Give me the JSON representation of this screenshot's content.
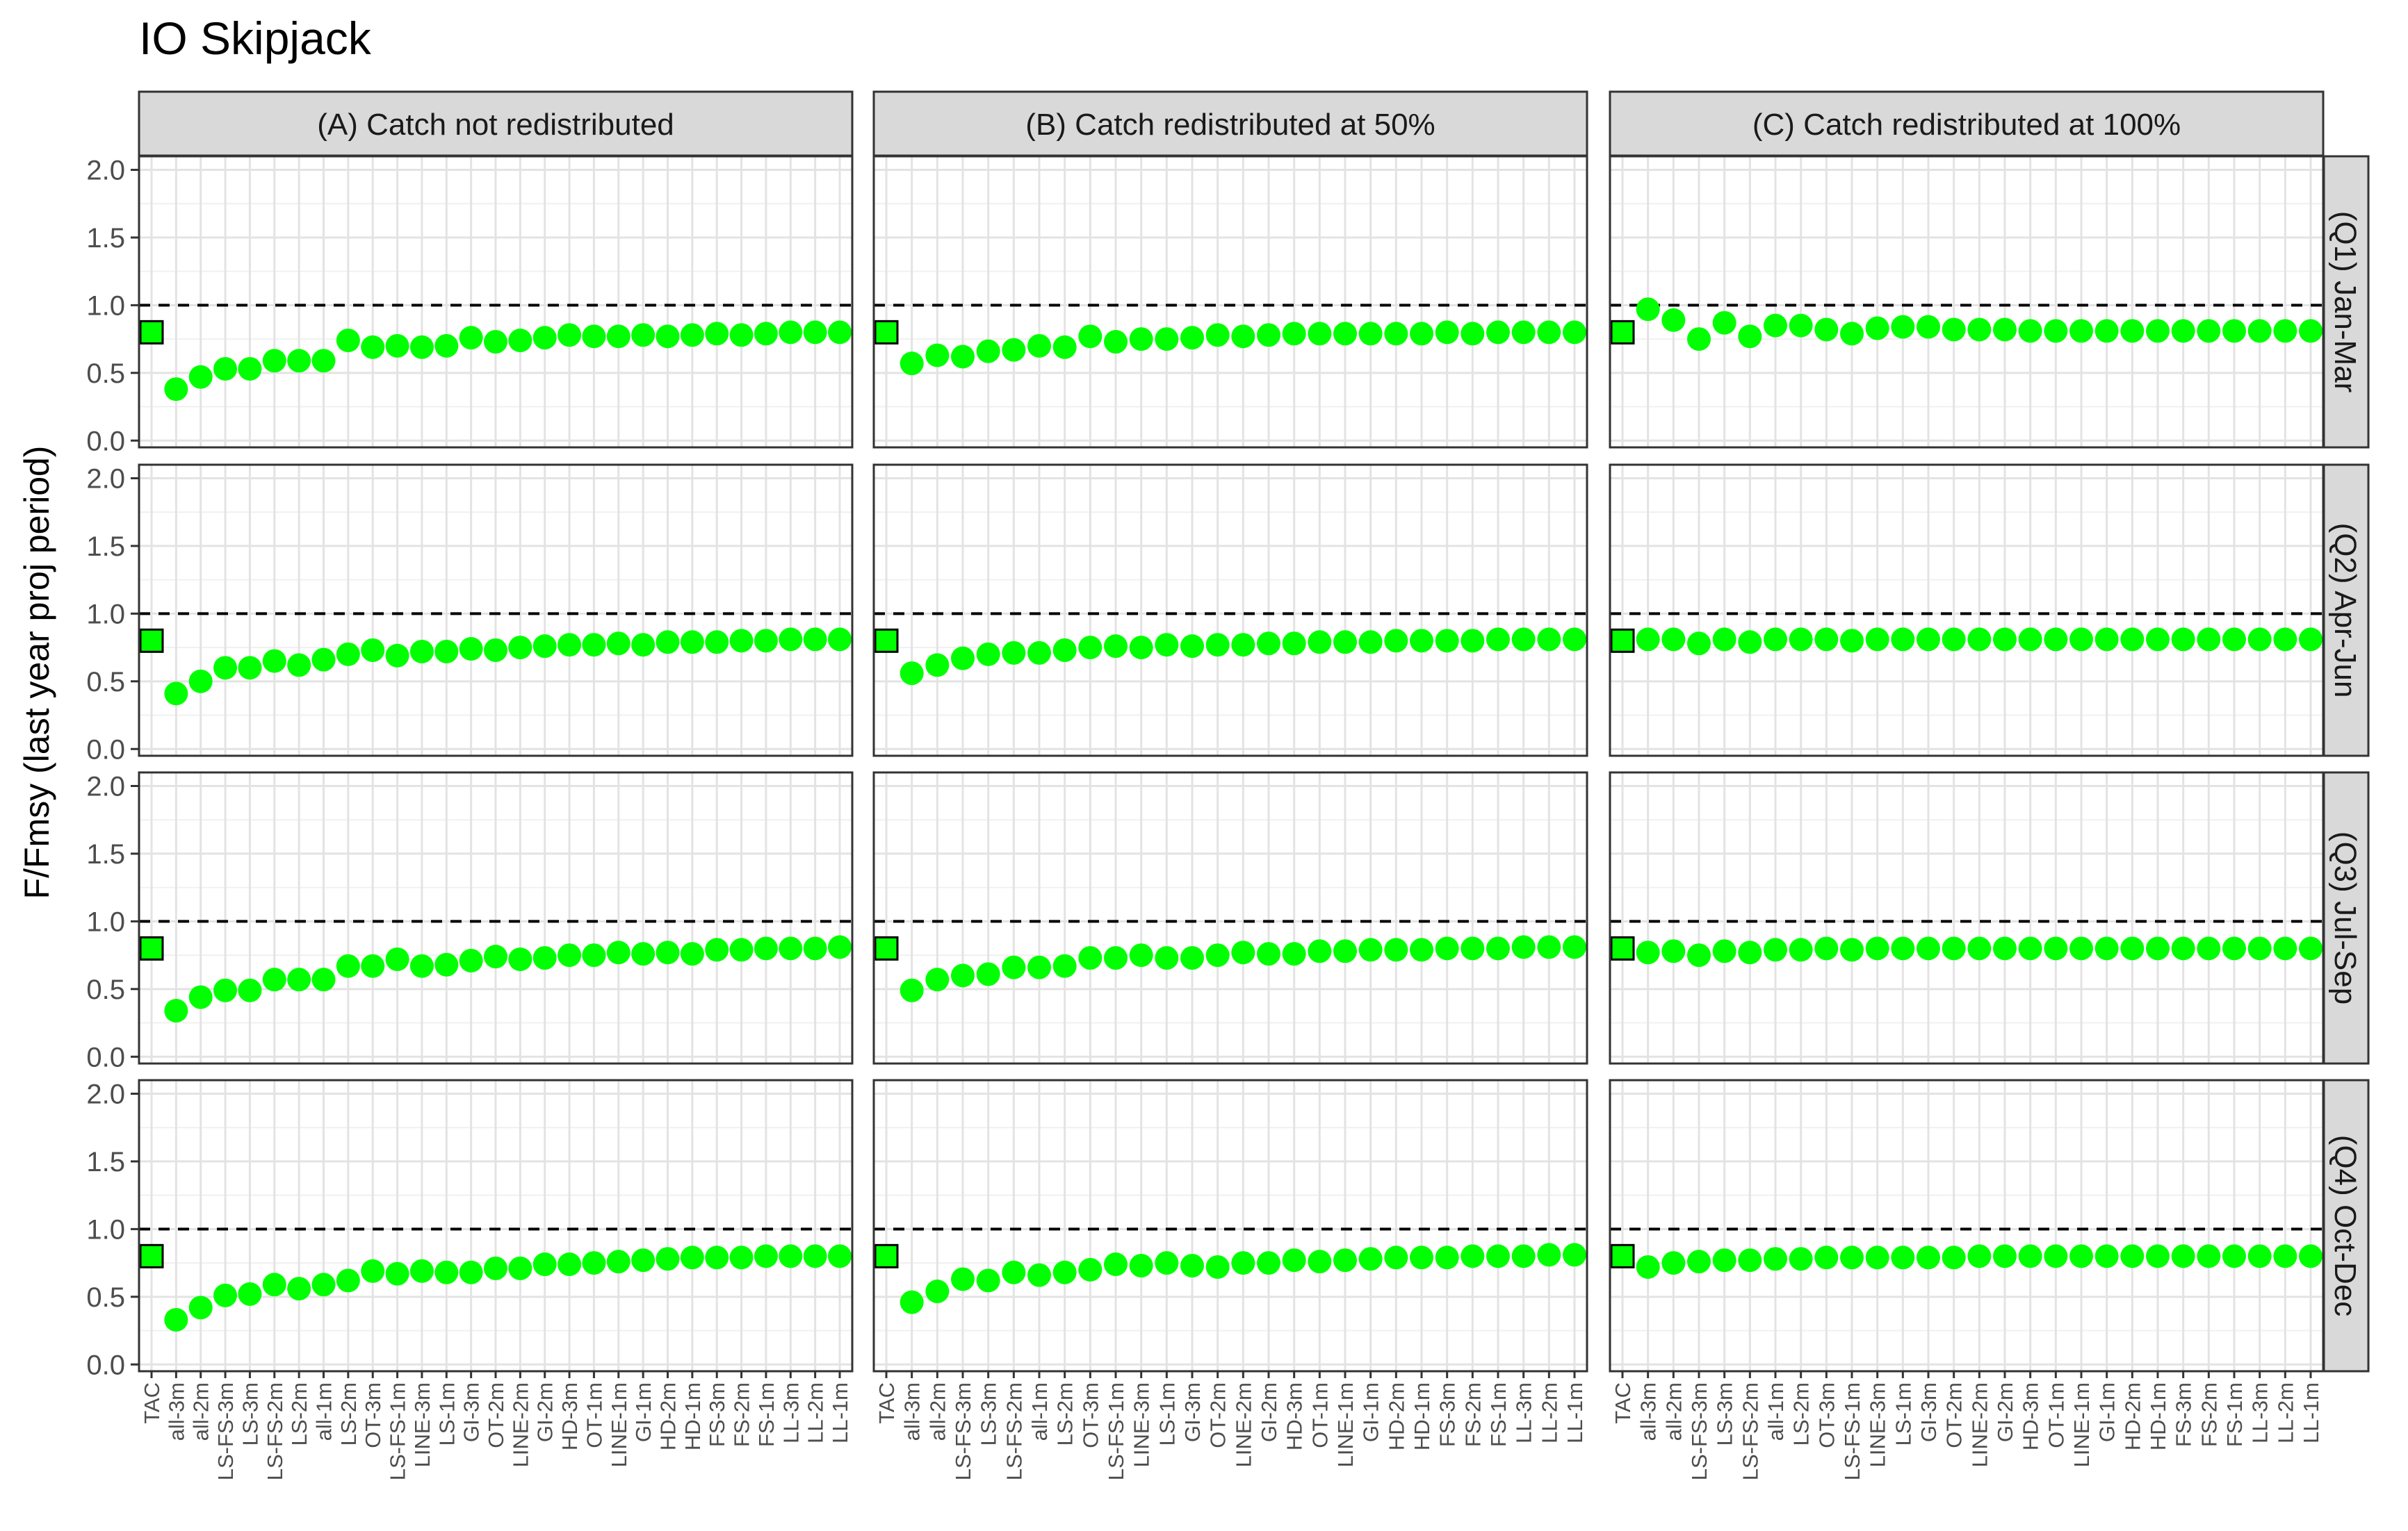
{
  "chart_data": {
    "type": "scatter",
    "title": "IO Skipjack",
    "ylabel": "F/Fmsy (last year proj period)",
    "ylim": [
      -0.05,
      2.1
    ],
    "yticks": [
      "0.0",
      "0.5",
      "1.0",
      "1.5",
      "2.0"
    ],
    "reference_line": 1.0,
    "grid": true,
    "columns": [
      "(A) Catch not redistributed",
      "(B) Catch redistributed at 50%",
      "(C) Catch redistributed at 100%"
    ],
    "rows": [
      "(Q1) Jan-Mar",
      "(Q2) Apr-Jun",
      "(Q3) Jul-Sep",
      "(Q4) Oct-Dec"
    ],
    "categories": [
      [
        "TAC",
        "all-3m",
        "all-2m",
        "LS-FS-3m",
        "LS-3m",
        "LS-FS-2m",
        "LS-2m",
        "all-1m",
        "LS-2m",
        "OT-3m",
        "LS-FS-1m",
        "LINE-3m",
        "LS-1m",
        "GI-3m",
        "OT-2m",
        "LINE-2m",
        "GI-2m",
        "HD-3m",
        "OT-1m",
        "LINE-1m",
        "GI-1m",
        "HD-2m",
        "HD-1m",
        "FS-3m",
        "FS-2m",
        "FS-1m",
        "LL-3m",
        "LL-2m",
        "LL-1m"
      ],
      [
        "TAC",
        "all-3m",
        "all-2m",
        "LS-FS-3m",
        "LS-3m",
        "LS-FS-2m",
        "all-1m",
        "LS-2m",
        "OT-3m",
        "LS-FS-1m",
        "LINE-3m",
        "LS-1m",
        "GI-3m",
        "OT-2m",
        "LINE-2m",
        "GI-2m",
        "HD-3m",
        "OT-1m",
        "LINE-1m",
        "GI-1m",
        "HD-2m",
        "HD-1m",
        "FS-3m",
        "FS-2m",
        "FS-1m",
        "LL-3m",
        "LL-2m",
        "LL-1m"
      ],
      [
        "TAC",
        "all-3m",
        "all-2m",
        "LS-FS-3m",
        "LS-3m",
        "LS-FS-2m",
        "all-1m",
        "LS-2m",
        "OT-3m",
        "LS-FS-1m",
        "LINE-3m",
        "LS-1m",
        "GI-3m",
        "OT-2m",
        "LINE-2m",
        "GI-2m",
        "HD-3m",
        "OT-1m",
        "LINE-1m",
        "GI-1m",
        "HD-2m",
        "HD-1m",
        "FS-3m",
        "FS-2m",
        "FS-1m",
        "LL-3m",
        "LL-2m",
        "LL-1m"
      ]
    ],
    "tac_value": 0.8,
    "marker_colors": {
      "tac_square": "#00ff00",
      "tac_border": "#000000",
      "points": "#00ff00",
      "strip": "#d9d9d9"
    },
    "panels": [
      [
        [
          0.38,
          0.47,
          0.53,
          0.53,
          0.59,
          0.59,
          0.59,
          0.74,
          0.69,
          0.7,
          0.69,
          0.7,
          0.76,
          0.73,
          0.74,
          0.76,
          0.78,
          0.77,
          0.77,
          0.78,
          0.77,
          0.78,
          0.79,
          0.78,
          0.79,
          0.8,
          0.8,
          0.8
        ],
        [
          0.41,
          0.5,
          0.6,
          0.6,
          0.65,
          0.62,
          0.66,
          0.7,
          0.73,
          0.69,
          0.72,
          0.72,
          0.74,
          0.73,
          0.75,
          0.76,
          0.77,
          0.77,
          0.78,
          0.77,
          0.79,
          0.79,
          0.79,
          0.8,
          0.8,
          0.81,
          0.81,
          0.81
        ],
        [
          0.34,
          0.44,
          0.49,
          0.49,
          0.57,
          0.57,
          0.57,
          0.67,
          0.67,
          0.72,
          0.67,
          0.68,
          0.71,
          0.74,
          0.72,
          0.73,
          0.75,
          0.75,
          0.77,
          0.76,
          0.77,
          0.76,
          0.79,
          0.79,
          0.8,
          0.8,
          0.8,
          0.81
        ],
        [
          0.33,
          0.42,
          0.51,
          0.52,
          0.59,
          0.56,
          0.59,
          0.62,
          0.69,
          0.67,
          0.69,
          0.68,
          0.68,
          0.71,
          0.71,
          0.74,
          0.74,
          0.75,
          0.76,
          0.77,
          0.78,
          0.79,
          0.79,
          0.79,
          0.8,
          0.8,
          0.8,
          0.8
        ]
      ],
      [
        [
          0.57,
          0.63,
          0.62,
          0.66,
          0.67,
          0.7,
          0.69,
          0.77,
          0.73,
          0.75,
          0.75,
          0.76,
          0.78,
          0.77,
          0.78,
          0.79,
          0.79,
          0.79,
          0.79,
          0.79,
          0.79,
          0.8,
          0.79,
          0.8,
          0.8,
          0.8,
          0.8
        ],
        [
          0.56,
          0.62,
          0.67,
          0.7,
          0.71,
          0.71,
          0.73,
          0.75,
          0.76,
          0.75,
          0.77,
          0.76,
          0.77,
          0.77,
          0.78,
          0.78,
          0.79,
          0.79,
          0.79,
          0.8,
          0.8,
          0.8,
          0.8,
          0.81,
          0.81,
          0.81,
          0.81
        ],
        [
          0.49,
          0.57,
          0.6,
          0.61,
          0.66,
          0.66,
          0.67,
          0.73,
          0.73,
          0.75,
          0.73,
          0.73,
          0.75,
          0.77,
          0.76,
          0.76,
          0.78,
          0.78,
          0.79,
          0.79,
          0.79,
          0.8,
          0.8,
          0.8,
          0.81,
          0.81,
          0.81
        ],
        [
          0.46,
          0.54,
          0.63,
          0.62,
          0.68,
          0.66,
          0.68,
          0.7,
          0.74,
          0.73,
          0.75,
          0.73,
          0.72,
          0.75,
          0.75,
          0.77,
          0.76,
          0.77,
          0.78,
          0.79,
          0.79,
          0.79,
          0.8,
          0.8,
          0.8,
          0.81,
          0.81
        ]
      ],
      [
        [
          0.97,
          0.89,
          0.75,
          0.87,
          0.77,
          0.85,
          0.85,
          0.82,
          0.79,
          0.83,
          0.84,
          0.84,
          0.82,
          0.82,
          0.82,
          0.81,
          0.81,
          0.81,
          0.81,
          0.81,
          0.81,
          0.81,
          0.81,
          0.81,
          0.81,
          0.81,
          0.81
        ],
        [
          0.81,
          0.81,
          0.78,
          0.81,
          0.79,
          0.81,
          0.81,
          0.81,
          0.8,
          0.81,
          0.81,
          0.81,
          0.81,
          0.81,
          0.81,
          0.81,
          0.81,
          0.81,
          0.81,
          0.81,
          0.81,
          0.81,
          0.81,
          0.81,
          0.81,
          0.81,
          0.81
        ],
        [
          0.77,
          0.78,
          0.75,
          0.78,
          0.77,
          0.79,
          0.79,
          0.8,
          0.79,
          0.8,
          0.8,
          0.8,
          0.8,
          0.8,
          0.8,
          0.8,
          0.8,
          0.8,
          0.8,
          0.8,
          0.8,
          0.8,
          0.8,
          0.8,
          0.8,
          0.8,
          0.8
        ],
        [
          0.72,
          0.75,
          0.76,
          0.77,
          0.77,
          0.78,
          0.78,
          0.79,
          0.79,
          0.79,
          0.79,
          0.79,
          0.79,
          0.8,
          0.8,
          0.8,
          0.8,
          0.8,
          0.8,
          0.8,
          0.8,
          0.8,
          0.8,
          0.8,
          0.8,
          0.8,
          0.8
        ]
      ]
    ]
  }
}
